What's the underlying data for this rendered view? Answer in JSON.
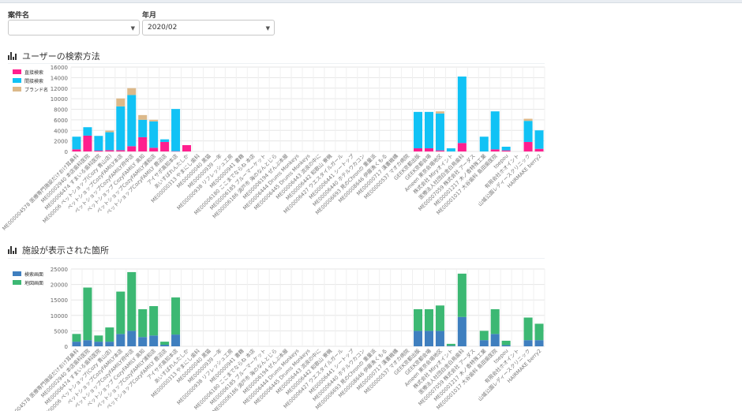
{
  "filters": {
    "project_label": "案件名",
    "project_value": "",
    "month_label": "年月",
    "month_value": "2020/02"
  },
  "chart_data": [
    {
      "type": "bar",
      "stacked": true,
      "title": "ユーザーの検索方法",
      "ylim": [
        0,
        16000
      ],
      "yticks": [
        0,
        2000,
        4000,
        6000,
        8000,
        10000,
        12000,
        14000,
        16000
      ],
      "grid": true,
      "legend_position": "top-left",
      "categories": [
        "ME000004578 医療専門施設だけおけ耳鼻科",
        "ME00002940 本店歯科医院",
        "ME00006474 すまいる歯科医院",
        "ME00006 ペットショップ(Cozy 青山店)",
        "ペットショップCozyFAMILY本店",
        "ペットショップCozyFAMILY府中店",
        "ペットショップ CozyFAMILY 高知",
        "ペットショップCozyFAMILY浦和店",
        "ペットショップCozyFAMILY 鹿沼店",
        "アイサポ高知本店",
        "あいすばれんたしか",
        "ME00000313 やまにし歯科",
        "ME00000040 黒猫",
        "ME00000939 一年",
        "ME00000938 リフレッシュ工房",
        "ME00000941 書籍",
        "ME00006180 ここまでならね 本店",
        "ME00006185 ブルーマーケット",
        "ME00006186 須戸市 海のなんとじら",
        "ME00006194 ぜんぶ本屋",
        "ME00006444 Drums Monkeys",
        "ME00006445 Drums Monkeys",
        "ME00006443 流浪の中に",
        "ME00006442 和歌山 寮機",
        "ME00006427 ウエスタイルガール",
        "ME00006441 シートップ",
        "ME00006440 ホテルウカコン",
        "ME00006693 見のChronの 重量派",
        "ME00008646 伊藤漁くもる",
        "ME00000717 漢書機構",
        "ME00000537 マオカ病院",
        "GEEK京都出版",
        "GEEK京都会場",
        "Ameen 東京会場地区",
        "株式会社 Miryオイント",
        "医療法人社団白金白鳥歯科",
        "ME00007059 株式会社 アーダス",
        "ME00001217 木ノ香特殊工業",
        "ME00001017 大谷歯科 島田歯医院",
        "toepou",
        "有限会社ホオイント",
        "山城公園レディースクリニック",
        "HAIRMAKE berry2"
      ],
      "series": [
        {
          "name": "直接検索",
          "color": "#ff1f8e",
          "values": [
            400,
            3000,
            150,
            250,
            250,
            1000,
            2700,
            700,
            1800,
            50,
            1200,
            0,
            0,
            0,
            0,
            0,
            0,
            0,
            0,
            0,
            0,
            0,
            0,
            0,
            0,
            0,
            0,
            0,
            0,
            0,
            0,
            600,
            600,
            200,
            0,
            1600,
            0,
            0,
            400,
            200,
            0,
            1800,
            500
          ]
        },
        {
          "name": "間接検索",
          "color": "#11c2f5",
          "values": [
            2400,
            1600,
            2800,
            3400,
            8300,
            9700,
            3300,
            5000,
            500,
            8000,
            0,
            0,
            0,
            0,
            0,
            0,
            0,
            0,
            0,
            0,
            0,
            0,
            0,
            0,
            0,
            0,
            0,
            0,
            0,
            0,
            0,
            6900,
            6900,
            7000,
            600,
            12600,
            0,
            2800,
            7200,
            700,
            0,
            4000,
            3500
          ]
        },
        {
          "name": "ブランド名",
          "color": "#dcb98a",
          "values": [
            0,
            0,
            0,
            300,
            1500,
            1300,
            900,
            300,
            0,
            0,
            0,
            0,
            0,
            0,
            0,
            0,
            0,
            0,
            0,
            0,
            0,
            0,
            0,
            0,
            0,
            0,
            0,
            0,
            0,
            0,
            0,
            0,
            0,
            400,
            0,
            0,
            0,
            0,
            0,
            0,
            0,
            400,
            0
          ]
        }
      ]
    },
    {
      "type": "bar",
      "stacked": true,
      "title": "施設が表示された箇所",
      "ylim": [
        0,
        25000
      ],
      "yticks": [
        0,
        5000,
        10000,
        15000,
        20000,
        25000
      ],
      "grid": true,
      "legend_position": "top-left",
      "categories": [
        "ME000004578 医療専門施設だけおけ耳鼻科",
        "ME00002940 本店歯科医院",
        "ME00006474 すまいる歯科医院",
        "ME00006 ペットショップ(Cozy 青山店)",
        "ペットショップCozyFAMILY本店",
        "ペットショップCozyFAMILY府中店",
        "ペットショップ CozyFAMILY 高知",
        "ペットショップCozyFAMILY浦和店",
        "ペットショップCozyFAMILY 鹿沼店",
        "アイサポ高知本店",
        "あいすばれんたしか",
        "ME00000313 やまにし歯科",
        "ME00000040 黒猫",
        "ME00000939 一年",
        "ME00000938 リフレッシュ工房",
        "ME00000941 書籍",
        "ME00006180 ここまでならね 本店",
        "ME00006185 ブルーマーケット",
        "ME00006186 須戸市 海のなんとじら",
        "ME00006194 ぜんぶ本屋",
        "ME00006444 Drums Monkeys",
        "ME00006445 Drums Monkeys",
        "ME00006443 流浪の中に",
        "ME00006442 和歌山 寮機",
        "ME00006427 ウエスタイルガール",
        "ME00006441 シートップ",
        "ME00006440 ホテルウカコン",
        "ME00006693 見のChronの 重量派",
        "ME00008646 伊藤漁くもる",
        "ME00000717 漢書機構",
        "ME00000537 マオカ病院",
        "GEEK京都出版",
        "GEEK京都会場",
        "Ameen 東京会場地区",
        "株式会社 Miryオイント",
        "医療法人社団白金白鳥歯科",
        "ME00007059 株式会社 アーダス",
        "ME00001217 木ノ香特殊工業",
        "ME00001017 大谷歯科 島田歯医院",
        "toepou",
        "有限会社ホオイント",
        "山城公園レディースクリニック",
        "HAIRMAKE berry2"
      ],
      "series": [
        {
          "name": "検索画面",
          "color": "#3f7fbf",
          "values": [
            1500,
            2000,
            1500,
            1500,
            4000,
            5000,
            3000,
            3500,
            500,
            3800,
            0,
            0,
            0,
            0,
            0,
            0,
            0,
            0,
            0,
            0,
            0,
            0,
            0,
            0,
            0,
            0,
            0,
            0,
            0,
            0,
            0,
            5000,
            5000,
            5000,
            200,
            9500,
            0,
            2000,
            4000,
            400,
            0,
            2000,
            2000
          ]
        },
        {
          "name": "地図画面",
          "color": "#3cb873",
          "values": [
            2500,
            17000,
            2000,
            4600,
            13700,
            19000,
            9000,
            9500,
            1000,
            12000,
            0,
            0,
            0,
            0,
            0,
            0,
            0,
            0,
            0,
            0,
            0,
            0,
            0,
            0,
            0,
            0,
            0,
            0,
            0,
            0,
            0,
            7000,
            7000,
            8200,
            600,
            14000,
            0,
            3000,
            8000,
            1400,
            0,
            7300,
            5300
          ]
        }
      ]
    }
  ]
}
